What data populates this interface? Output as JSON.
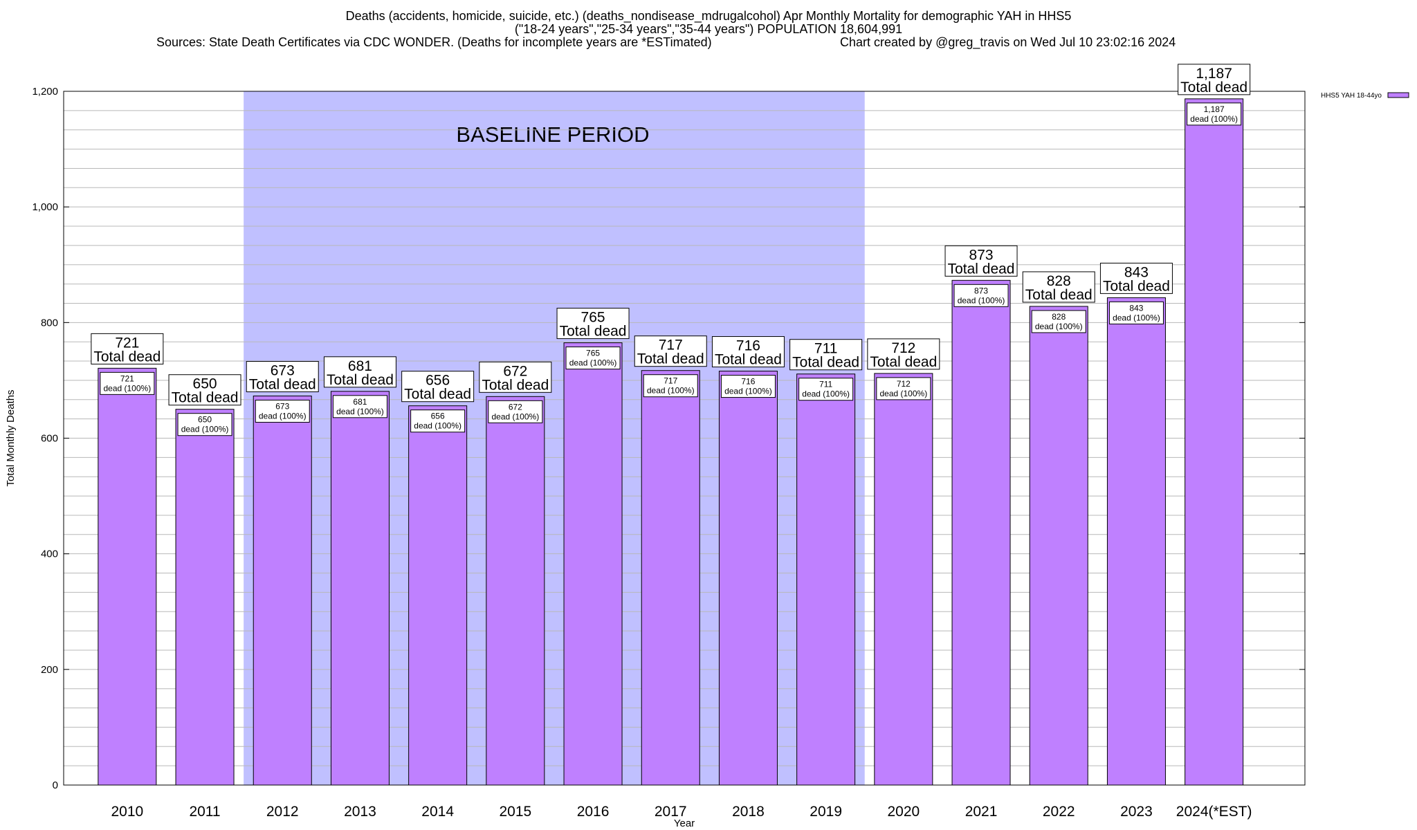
{
  "chart_data": {
    "type": "bar",
    "title": "Deaths (accidents, homicide, suicide, etc.) (deaths_nondisease_mdrugalcohol) Apr Monthly Mortality for demographic YAH in HHS5",
    "subtitle": "(\"18-24 years\",\"25-34 years\",\"35-44 years\") POPULATION 18,604,991",
    "source": "Sources: State Death Certificates via CDC WONDER. (Deaths for incomplete years are *ESTimated)",
    "credit": "Chart created by @greg_travis on Wed Jul 10 23:02:16 2024",
    "xlabel": "Year",
    "ylabel": "Total Monthly Deaths",
    "ylim": [
      0,
      1200
    ],
    "yticks": [
      0,
      200,
      400,
      600,
      800,
      1000,
      1200
    ],
    "ytick_labels": [
      "0",
      "200",
      "400",
      "600",
      "800",
      "1,000",
      "1,200"
    ],
    "categories": [
      "2010",
      "2011",
      "2012",
      "2013",
      "2014",
      "2015",
      "2016",
      "2017",
      "2018",
      "2019",
      "2020",
      "2021",
      "2022",
      "2023",
      "2024(*EST)"
    ],
    "series": [
      {
        "name": "HHS5 YAH 18-44yo",
        "color": "#bf80ff",
        "values": [
          721,
          650,
          673,
          681,
          656,
          672,
          765,
          717,
          716,
          711,
          712,
          873,
          828,
          843,
          1187
        ]
      }
    ],
    "value_labels": [
      "721",
      "650",
      "673",
      "681",
      "656",
      "672",
      "765",
      "717",
      "716",
      "711",
      "712",
      "873",
      "828",
      "843",
      "1,187"
    ],
    "annotation_total_text": "Total dead",
    "annotation_pct_text": "dead (100%)",
    "baseline_period": {
      "label": "BASELINE PERIOD",
      "start": "2012",
      "end": "2019",
      "color": "#c0c0ff"
    },
    "legend": {
      "entry": "HHS5 YAH 18-44yo",
      "placement": "top-right"
    },
    "grid": true
  }
}
